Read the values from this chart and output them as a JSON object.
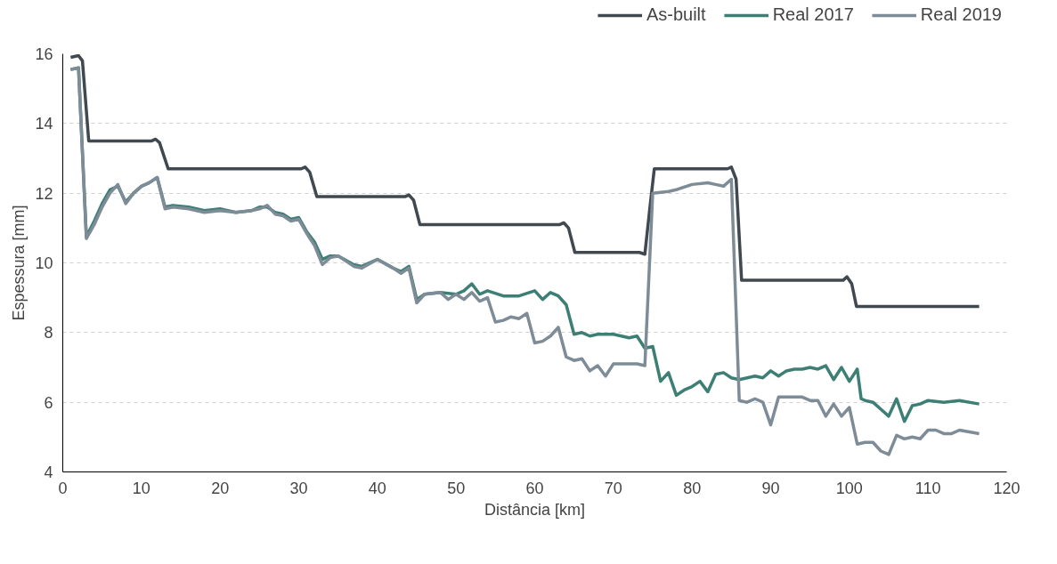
{
  "chart_data": {
    "type": "line",
    "xlabel": "Distância [km]",
    "ylabel": "Espessura [mm]",
    "xlim": [
      0,
      120
    ],
    "ylim": [
      4,
      16
    ],
    "xticks": [
      0,
      10,
      20,
      30,
      40,
      50,
      60,
      70,
      80,
      90,
      100,
      110,
      120
    ],
    "yticks": [
      4,
      6,
      8,
      10,
      12,
      14,
      16
    ],
    "grid": "y",
    "legend": "top right",
    "marker": "none",
    "line_style": "solid",
    "series": [
      {
        "name": "As-built",
        "color": "#404850",
        "x": [
          1,
          2,
          2.5,
          3.3,
          4,
          11.3,
          11.8,
          12.3,
          13.4,
          14,
          30.3,
          30.8,
          31.4,
          32.3,
          33,
          43.5,
          44,
          44.6,
          45.4,
          46,
          63.2,
          63.7,
          64.3,
          65.1,
          66,
          73.3,
          74,
          74.6,
          75.2,
          76,
          84.5,
          85,
          85.6,
          86.3,
          87,
          99.2,
          99.7,
          100.3,
          100.9,
          102,
          116.5
        ],
        "values": [
          15.9,
          15.95,
          15.8,
          13.5,
          13.5,
          13.5,
          13.55,
          13.45,
          12.7,
          12.7,
          12.7,
          12.75,
          12.6,
          11.9,
          11.9,
          11.9,
          11.95,
          11.8,
          11.1,
          11.1,
          11.1,
          11.15,
          11.0,
          10.3,
          10.3,
          10.3,
          10.25,
          11.5,
          12.7,
          12.7,
          12.7,
          12.75,
          12.4,
          9.5,
          9.5,
          9.5,
          9.6,
          9.4,
          8.75,
          8.75,
          8.75
        ]
      },
      {
        "name": "Real 2017",
        "color": "#3d7f74",
        "x": [
          1,
          2,
          3,
          4,
          5,
          6,
          7,
          8,
          9,
          10,
          11,
          12,
          13,
          14,
          16,
          18,
          20,
          22,
          24,
          25,
          26,
          27,
          28,
          29,
          30,
          31,
          32,
          33,
          34,
          35,
          37,
          38,
          40,
          42,
          43,
          44,
          45,
          46,
          48,
          50,
          51,
          52,
          53,
          54,
          56,
          58,
          60,
          61,
          62,
          63,
          64,
          65,
          66,
          67,
          68,
          70,
          72,
          73,
          74,
          75,
          76,
          77,
          78,
          79,
          80,
          81,
          82,
          83,
          84,
          85,
          86,
          87,
          88,
          89,
          90,
          91,
          92,
          93,
          94,
          95,
          96,
          97,
          98,
          99,
          100,
          101,
          101.5,
          102,
          103,
          104,
          105,
          106,
          107,
          108,
          109,
          110,
          112,
          114,
          116.5
        ],
        "values": [
          15.55,
          15.6,
          10.75,
          11.2,
          11.7,
          12.1,
          12.2,
          11.75,
          12.0,
          12.2,
          12.3,
          12.45,
          11.6,
          11.65,
          11.6,
          11.5,
          11.55,
          11.45,
          11.5,
          11.6,
          11.6,
          11.45,
          11.4,
          11.25,
          11.3,
          10.9,
          10.6,
          10.1,
          10.2,
          10.2,
          9.95,
          9.9,
          10.1,
          9.85,
          9.75,
          9.9,
          8.95,
          9.1,
          9.15,
          9.1,
          9.2,
          9.4,
          9.1,
          9.2,
          9.05,
          9.05,
          9.2,
          8.95,
          9.15,
          9.05,
          8.8,
          7.95,
          8.0,
          7.9,
          7.95,
          7.95,
          7.85,
          7.9,
          7.55,
          7.6,
          6.6,
          6.85,
          6.2,
          6.35,
          6.45,
          6.6,
          6.3,
          6.8,
          6.85,
          6.7,
          6.65,
          6.7,
          6.75,
          6.7,
          6.9,
          6.75,
          6.9,
          6.95,
          6.95,
          7.0,
          6.95,
          7.05,
          6.65,
          7.0,
          6.6,
          6.95,
          6.1,
          6.05,
          6.0,
          5.8,
          5.6,
          6.1,
          5.45,
          5.9,
          5.95,
          6.05,
          6.0,
          6.05,
          5.95
        ]
      },
      {
        "name": "Real 2019",
        "color": "#7e8c98",
        "x": [
          1,
          2,
          3,
          4,
          5,
          6,
          7,
          8,
          9,
          10,
          11,
          12,
          13,
          14,
          16,
          18,
          20,
          22,
          24,
          25,
          26,
          27,
          28,
          29,
          30,
          31,
          32,
          33,
          34,
          35,
          37,
          38,
          40,
          42,
          43,
          44,
          45,
          46,
          48,
          49,
          50,
          51,
          52,
          53,
          54,
          55,
          56,
          57,
          58,
          59,
          60,
          61,
          62,
          63,
          64,
          65,
          66,
          67,
          68,
          69,
          70,
          72,
          73,
          74,
          75,
          77,
          78,
          80,
          82,
          83,
          84,
          85,
          86,
          87,
          88,
          89,
          90,
          91,
          93,
          94,
          95,
          96,
          97,
          98,
          99,
          100,
          101,
          102,
          103,
          104,
          105,
          106,
          107,
          108,
          109,
          110,
          111,
          112,
          113,
          114,
          116.5
        ],
        "values": [
          15.55,
          15.6,
          10.7,
          11.1,
          11.6,
          12.0,
          12.25,
          11.7,
          12.0,
          12.2,
          12.3,
          12.45,
          11.55,
          11.6,
          11.55,
          11.45,
          11.5,
          11.45,
          11.5,
          11.55,
          11.65,
          11.4,
          11.35,
          11.2,
          11.25,
          10.85,
          10.5,
          9.95,
          10.15,
          10.2,
          9.9,
          9.85,
          10.1,
          9.85,
          9.7,
          9.85,
          8.85,
          9.1,
          9.15,
          8.95,
          9.1,
          8.95,
          9.15,
          8.9,
          9.0,
          8.3,
          8.35,
          8.45,
          8.4,
          8.55,
          7.7,
          7.75,
          7.9,
          8.15,
          7.3,
          7.2,
          7.25,
          6.9,
          7.05,
          6.75,
          7.1,
          7.1,
          7.1,
          7.05,
          12.0,
          12.05,
          12.1,
          12.25,
          12.3,
          12.25,
          12.2,
          12.4,
          6.05,
          6.0,
          6.1,
          6.0,
          5.35,
          6.15,
          6.15,
          6.15,
          6.05,
          6.05,
          5.6,
          5.95,
          5.6,
          5.85,
          4.8,
          4.85,
          4.85,
          4.6,
          4.5,
          5.05,
          4.95,
          5.0,
          4.95,
          5.2,
          5.2,
          5.1,
          5.1,
          5.2,
          5.1
        ]
      }
    ]
  }
}
